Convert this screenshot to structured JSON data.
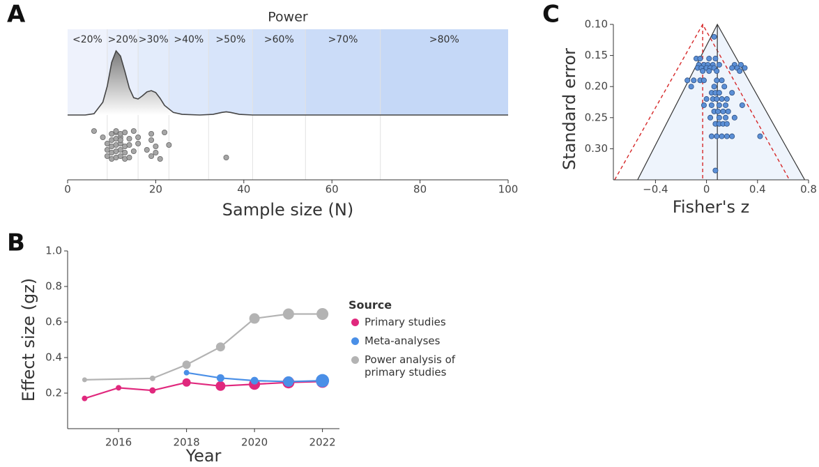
{
  "chart_data": [
    {
      "type": "density_strip",
      "panel": "A",
      "title": "Power",
      "x_label": "Sample size (N)",
      "xlim": [
        0,
        100
      ],
      "xticks": [
        0,
        20,
        40,
        60,
        80,
        100
      ],
      "bands": [
        {
          "label": "<20%",
          "start": 0,
          "end": 9,
          "color": "#eef2fc"
        },
        {
          "label": ">20%",
          "start": 9,
          "end": 16,
          "color": "#e9effc"
        },
        {
          "label": ">30%",
          "start": 16,
          "end": 23,
          "color": "#e3ecfb"
        },
        {
          "label": ">40%",
          "start": 23,
          "end": 32,
          "color": "#dde8fb"
        },
        {
          "label": ">50%",
          "start": 32,
          "end": 42,
          "color": "#d7e4fa"
        },
        {
          "label": ">60%",
          "start": 42,
          "end": 54,
          "color": "#d1e0f9"
        },
        {
          "label": ">70%",
          "start": 54,
          "end": 71,
          "color": "#cbdcf8"
        },
        {
          "label": ">80%",
          "start": 71,
          "end": 100,
          "color": "#c5d8f7"
        }
      ],
      "density": {
        "x": [
          0,
          4,
          6,
          8,
          9,
          10,
          11,
          12,
          13,
          14,
          15,
          16,
          17,
          18,
          19,
          20,
          21,
          22,
          24,
          26,
          30,
          33,
          35,
          36,
          37,
          39,
          42,
          100
        ],
        "y": [
          0,
          0,
          0.02,
          0.2,
          0.45,
          0.82,
          1,
          0.92,
          0.68,
          0.42,
          0.27,
          0.25,
          0.3,
          0.36,
          0.38,
          0.35,
          0.26,
          0.15,
          0.04,
          0.01,
          0,
          0.01,
          0.04,
          0.05,
          0.04,
          0.01,
          0,
          0
        ],
        "ylim": [
          0,
          1
        ]
      },
      "samples": [
        6,
        8,
        9,
        9,
        9,
        10,
        10,
        10,
        10,
        10,
        11,
        11,
        11,
        11,
        11,
        11,
        12,
        12,
        12,
        12,
        12,
        12,
        13,
        13,
        13,
        13,
        14,
        14,
        14,
        15,
        15,
        16,
        16,
        18,
        19,
        19,
        19,
        20,
        20,
        21,
        22,
        23,
        36
      ],
      "dot_color": "#a6a6a6"
    },
    {
      "type": "line",
      "panel": "B",
      "x_label": "Year",
      "y_label": "Effect size (gz)",
      "legend_title": "Source",
      "xlim": [
        2014.5,
        2022.5
      ],
      "xticks": [
        2016,
        2018,
        2020,
        2022
      ],
      "ylim": [
        0,
        1.0
      ],
      "yticks": [
        0.2,
        0.4,
        0.6,
        0.8,
        {
          "value": 1.0,
          "label": "1.0"
        }
      ],
      "series": [
        {
          "name": "Primary studies",
          "color": "#e0287d",
          "x": [
            2015,
            2016,
            2017,
            2018,
            2019,
            2020,
            2021,
            2022
          ],
          "values": [
            0.17,
            0.23,
            0.215,
            0.26,
            0.24,
            0.25,
            0.26,
            0.265
          ],
          "sizes": [
            4,
            4,
            4.5,
            6,
            7,
            8,
            8.5,
            9
          ]
        },
        {
          "name": "Meta-analyses",
          "color": "#4a8fe7",
          "x": [
            2018,
            2019,
            2020,
            2021,
            2022
          ],
          "values": [
            0.315,
            0.285,
            0.27,
            0.265,
            0.27
          ],
          "sizes": [
            4,
            5.5,
            5.5,
            7.5,
            9.5
          ]
        },
        {
          "name": "Power analysis of primary studies",
          "color": "#b3b3b3",
          "x": [
            2015,
            2017,
            2018,
            2019,
            2020,
            2021,
            2022
          ],
          "values": [
            0.275,
            0.283,
            0.36,
            0.46,
            0.62,
            0.645,
            0.645
          ],
          "sizes": [
            3.5,
            4,
            6,
            6.5,
            7.5,
            8,
            8.5
          ]
        }
      ]
    },
    {
      "type": "funnel",
      "panel": "C",
      "x_label": "Fisher's z",
      "y_label": "Standard error",
      "xlim": [
        -0.73,
        0.8
      ],
      "xticks": [
        {
          "value": -0.4,
          "label": "−0.4"
        },
        0,
        0.4,
        0.8
      ],
      "ylim": [
        0.35,
        0.1
      ],
      "yticks": [
        {
          "value": 0.1,
          "label": "0.10"
        },
        {
          "value": 0.15,
          "label": "0.15"
        },
        {
          "value": 0.2,
          "label": "0.20"
        },
        {
          "value": 0.25,
          "label": "0.25"
        },
        {
          "value": 0.3,
          "label": "0.30"
        }
      ],
      "funnel": {
        "x": [
          -0.54,
          0.085,
          0.77
        ],
        "y": [
          0.35,
          0.1,
          0.35
        ],
        "color": "#333333",
        "fill": "#eef4fc"
      },
      "reference_funnel": {
        "x": [
          -0.72,
          -0.03,
          0.65
        ],
        "y": [
          0.35,
          0.1,
          0.35
        ],
        "color": "#d62728"
      },
      "center_line": 0.085,
      "reference_line": -0.03,
      "point_color": "#5b8fd6",
      "x": [
        0.06,
        -0.08,
        -0.05,
        0.02,
        0.07,
        -0.06,
        -0.02,
        0.01,
        0.05,
        0.1,
        0.22,
        0.27,
        -0.07,
        -0.04,
        0.0,
        0.03,
        0.06,
        0.2,
        0.24,
        0.3,
        -0.03,
        0.02,
        0.08,
        0.26,
        -0.15,
        -0.1,
        -0.05,
        -0.02,
        0.08,
        0.12,
        -0.12,
        0.06,
        0.14,
        0.04,
        0.07,
        0.1,
        0.2,
        0.0,
        0.05,
        0.08,
        0.12,
        0.16,
        -0.02,
        0.04,
        0.1,
        0.15,
        0.28,
        0.06,
        0.09,
        0.13,
        0.17,
        0.03,
        0.1,
        0.15,
        0.22,
        0.07,
        0.1,
        0.13,
        0.16,
        0.04,
        0.08,
        0.12,
        0.16,
        0.2,
        0.42,
        0.07
      ],
      "y": [
        0.12,
        0.155,
        0.155,
        0.155,
        0.155,
        0.165,
        0.165,
        0.165,
        0.165,
        0.165,
        0.165,
        0.165,
        0.17,
        0.17,
        0.17,
        0.17,
        0.17,
        0.17,
        0.17,
        0.17,
        0.175,
        0.175,
        0.175,
        0.175,
        0.19,
        0.19,
        0.19,
        0.19,
        0.19,
        0.19,
        0.2,
        0.2,
        0.2,
        0.21,
        0.21,
        0.21,
        0.21,
        0.22,
        0.22,
        0.22,
        0.22,
        0.22,
        0.23,
        0.23,
        0.23,
        0.23,
        0.23,
        0.24,
        0.24,
        0.24,
        0.24,
        0.25,
        0.25,
        0.25,
        0.25,
        0.26,
        0.26,
        0.26,
        0.26,
        0.28,
        0.28,
        0.28,
        0.28,
        0.28,
        0.28,
        0.335
      ]
    }
  ]
}
